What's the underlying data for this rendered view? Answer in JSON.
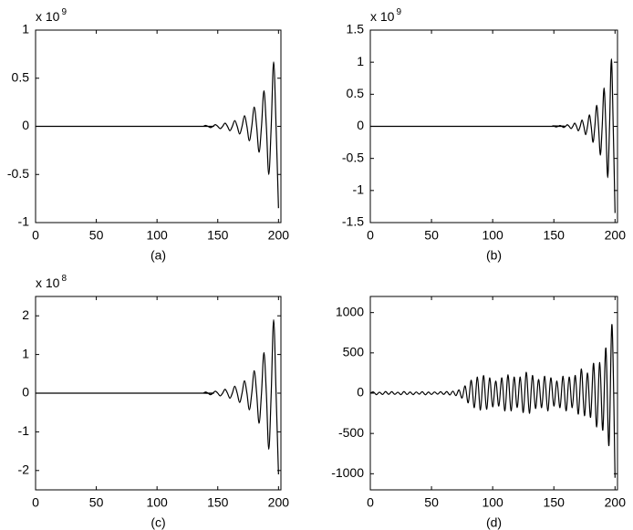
{
  "chart_data": [
    {
      "type": "line",
      "caption": "(a)",
      "multiplier": {
        "base": "x 10",
        "exponent": "9"
      },
      "x": [
        0,
        136,
        138,
        140,
        142,
        144,
        146,
        148,
        150,
        152,
        154,
        156,
        158,
        160,
        162,
        164,
        166,
        168,
        170,
        172,
        174,
        176,
        178,
        180,
        182,
        184,
        186,
        188,
        190,
        192,
        194,
        196,
        198,
        200
      ],
      "series": [
        {
          "color": "#000000",
          "values": [
            0,
            0,
            0,
            0.01,
            0,
            -0.013,
            0,
            0.018,
            0,
            -0.024,
            0,
            0.033,
            0,
            -0.045,
            0,
            0.06,
            0,
            -0.08,
            0,
            0.11,
            0,
            -0.15,
            0,
            0.2,
            0,
            -0.27,
            0,
            0.37,
            0,
            -0.5,
            0,
            0.67,
            0,
            -0.85
          ]
        }
      ],
      "xlim": [
        0,
        202
      ],
      "xticks": [
        0,
        50,
        100,
        150,
        200
      ],
      "ylim": [
        -1,
        1
      ],
      "yticks": [
        -1,
        -0.5,
        0,
        0.5,
        1
      ]
    },
    {
      "type": "line",
      "caption": "(b)",
      "multiplier": {
        "base": "x 10",
        "exponent": "9"
      },
      "x": [
        0,
        147.5,
        149,
        150.5,
        152,
        153.5,
        155,
        156.5,
        158,
        159.5,
        161,
        162.5,
        164,
        165.5,
        167,
        168.5,
        170,
        171.5,
        173,
        174.5,
        176,
        177.5,
        179,
        180.5,
        182,
        183.5,
        185,
        186.5,
        188,
        189.5,
        191,
        192.5,
        194,
        195.5,
        197,
        198.5,
        200
      ],
      "series": [
        {
          "color": "#000000",
          "values": [
            0,
            0,
            0.007,
            0,
            -0.01,
            0,
            0.013,
            0,
            -0.018,
            0,
            0.025,
            0,
            -0.035,
            0,
            0.05,
            0,
            -0.07,
            0,
            0.1,
            0,
            -0.13,
            0,
            0.18,
            0,
            -0.25,
            0,
            0.33,
            0,
            -0.45,
            0,
            0.6,
            0,
            -0.8,
            0,
            1.05,
            0,
            -1.35
          ]
        }
      ],
      "xlim": [
        0,
        202
      ],
      "xticks": [
        0,
        50,
        100,
        150,
        200
      ],
      "ylim": [
        -1.5,
        1.5
      ],
      "yticks": [
        -1.5,
        -1,
        -0.5,
        0,
        0.5,
        1,
        1.5
      ]
    },
    {
      "type": "line",
      "caption": "(c)",
      "multiplier": {
        "base": "x 10",
        "exponent": "8"
      },
      "x": [
        0,
        136,
        138,
        140,
        142,
        144,
        146,
        148,
        150,
        152,
        154,
        156,
        158,
        160,
        162,
        164,
        166,
        168,
        170,
        172,
        174,
        176,
        178,
        180,
        182,
        184,
        186,
        188,
        190,
        192,
        194,
        196,
        198,
        200
      ],
      "series": [
        {
          "color": "#000000",
          "values": [
            0,
            0,
            0,
            0.03,
            0,
            -0.04,
            0,
            0.05,
            0,
            -0.07,
            0,
            0.1,
            0,
            -0.13,
            0,
            0.18,
            0,
            -0.24,
            0,
            0.32,
            0,
            -0.43,
            0,
            0.58,
            0,
            -0.78,
            0,
            1.05,
            0,
            -1.45,
            0,
            1.9,
            0,
            -2.1
          ]
        }
      ],
      "xlim": [
        0,
        202
      ],
      "xticks": [
        0,
        50,
        100,
        150,
        200
      ],
      "ylim": [
        -2.5,
        2.5
      ],
      "yticks": [
        -2,
        -1,
        0,
        1,
        2
      ]
    },
    {
      "type": "line",
      "caption": "(d)",
      "x": [
        0,
        2.5,
        5,
        7.5,
        10,
        12.5,
        15,
        17.5,
        20,
        22.5,
        25,
        27.5,
        30,
        32.5,
        35,
        37.5,
        40,
        42.5,
        45,
        47.5,
        50,
        52.5,
        55,
        57.5,
        60,
        62.5,
        65,
        67.5,
        70,
        72.5,
        75,
        77.5,
        80,
        82.5,
        85,
        87.5,
        90,
        92.5,
        95,
        97.5,
        100,
        102.5,
        105,
        107.5,
        110,
        112.5,
        115,
        117.5,
        120,
        122.5,
        125,
        127.5,
        130,
        132.5,
        135,
        137.5,
        140,
        142.5,
        145,
        147.5,
        150,
        152.5,
        155,
        157.5,
        160,
        162.5,
        165,
        167.5,
        170,
        172.5,
        175,
        177.5,
        180,
        182.5,
        185,
        187.5,
        190,
        192.5,
        195,
        197.5,
        200
      ],
      "series": [
        {
          "color": "#000000",
          "values": [
            0,
            15,
            -18,
            12,
            -16,
            20,
            -14,
            18,
            -15,
            12,
            -18,
            20,
            -16,
            14,
            -18,
            15,
            -12,
            18,
            -20,
            14,
            -16,
            15,
            -12,
            18,
            -15,
            20,
            -22,
            25,
            -30,
            40,
            -60,
            90,
            -120,
            160,
            -180,
            200,
            -210,
            220,
            -200,
            190,
            -170,
            150,
            -160,
            190,
            -220,
            230,
            -220,
            200,
            -180,
            200,
            -240,
            260,
            -250,
            220,
            -190,
            170,
            -180,
            210,
            -220,
            190,
            -160,
            150,
            -180,
            210,
            -220,
            200,
            -180,
            220,
            -260,
            300,
            -280,
            250,
            -300,
            370,
            -420,
            380,
            -460,
            560,
            -650,
            850,
            -1050
          ]
        }
      ],
      "xlim": [
        0,
        202
      ],
      "xticks": [
        0,
        50,
        100,
        150,
        200
      ],
      "ylim": [
        -1200,
        1200
      ],
      "yticks": [
        -1000,
        -500,
        0,
        500,
        1000
      ]
    }
  ]
}
